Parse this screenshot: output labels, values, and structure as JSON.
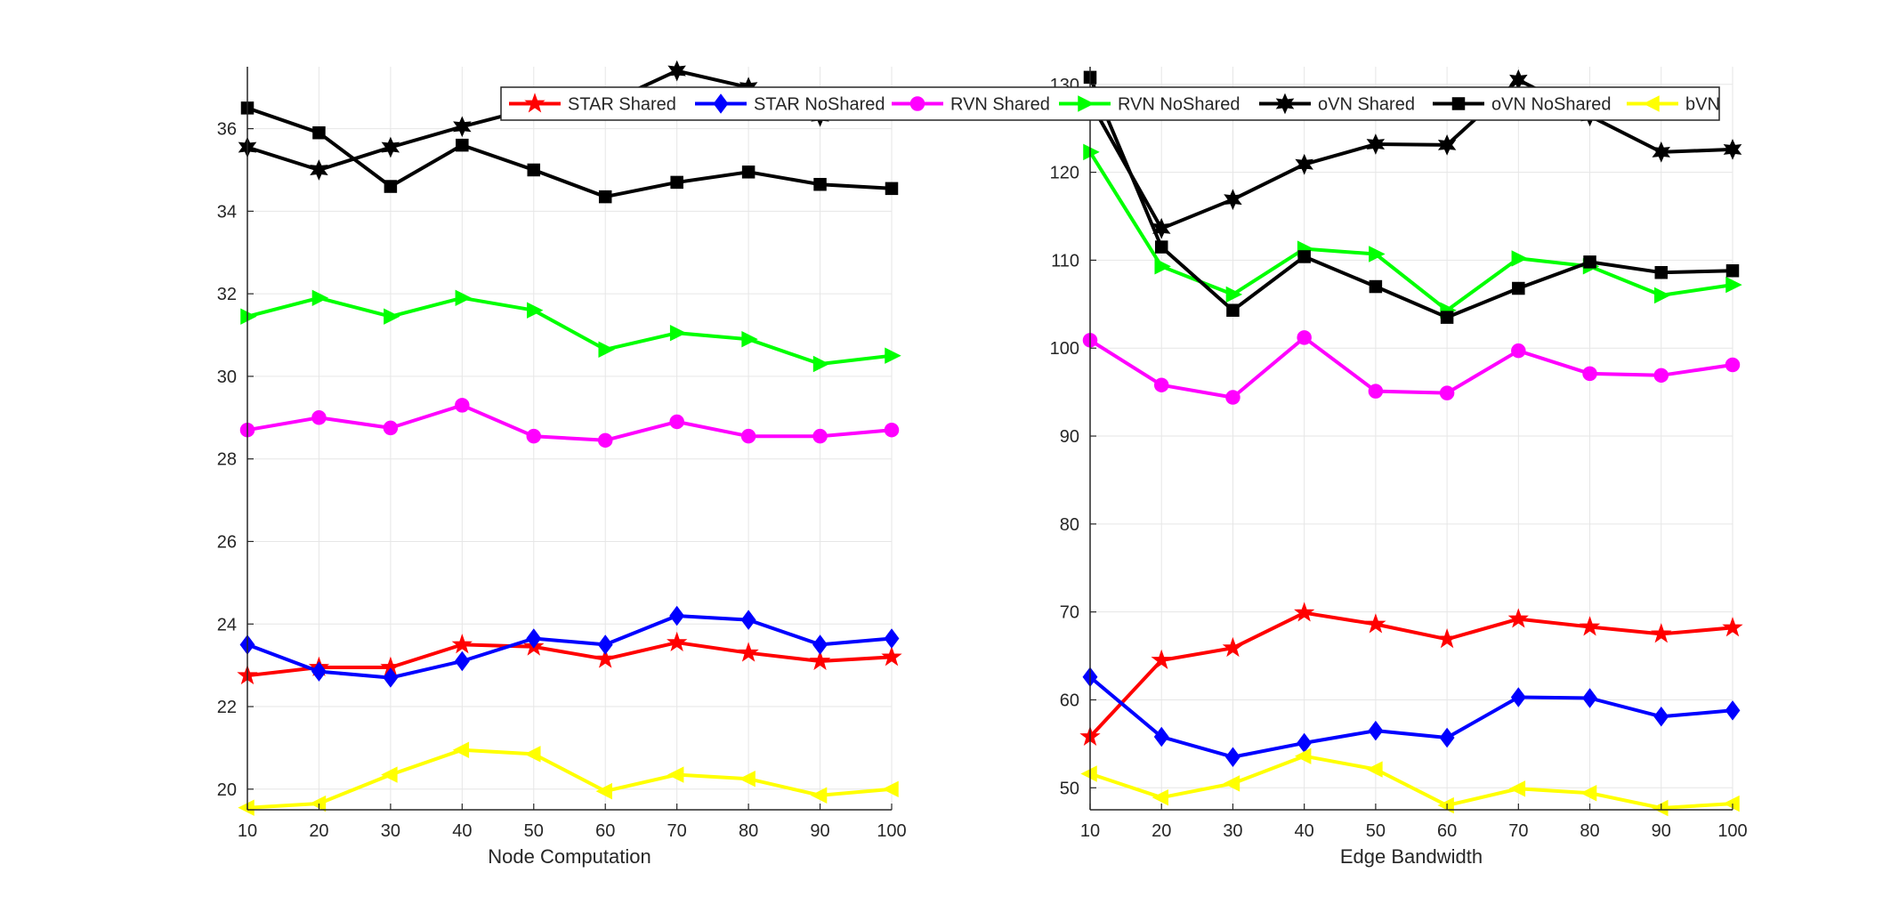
{
  "chart_data": [
    {
      "type": "line",
      "xlabel": "Node Computation",
      "ylabel": "",
      "x": [
        10,
        20,
        30,
        40,
        50,
        60,
        70,
        80,
        90,
        100
      ],
      "xlim": [
        10,
        100
      ],
      "ylim": [
        19.5,
        37.5
      ],
      "xticks": [
        10,
        20,
        30,
        40,
        50,
        60,
        70,
        80,
        90,
        100
      ],
      "yticks": [
        20,
        22,
        24,
        26,
        28,
        30,
        32,
        34,
        36
      ],
      "grid": true,
      "series": [
        {
          "name": "STAR Shared",
          "color": "#ff0000",
          "marker": "star",
          "values": [
            22.75,
            22.95,
            22.95,
            23.5,
            23.45,
            23.15,
            23.55,
            23.3,
            23.1,
            23.2
          ]
        },
        {
          "name": "STAR NoShared",
          "color": "#0000ff",
          "marker": "diamond",
          "values": [
            23.5,
            22.85,
            22.7,
            23.1,
            23.65,
            23.5,
            24.2,
            24.1,
            23.5,
            23.65
          ]
        },
        {
          "name": "RVN Shared",
          "color": "#ff00ff",
          "marker": "circle",
          "values": [
            28.7,
            29.0,
            28.75,
            29.3,
            28.55,
            28.45,
            28.9,
            28.55,
            28.55,
            28.7
          ]
        },
        {
          "name": "RVN NoShared",
          "color": "#00ff00",
          "marker": "triangle-right",
          "values": [
            31.45,
            31.9,
            31.45,
            31.9,
            31.6,
            30.65,
            31.05,
            30.9,
            30.3,
            30.5
          ]
        },
        {
          "name": "oVN Shared",
          "color": "#000000",
          "marker": "hexagram",
          "values": [
            35.55,
            35.0,
            35.55,
            36.05,
            36.5,
            36.6,
            37.4,
            37.0,
            36.3,
            36.55
          ]
        },
        {
          "name": "oVN NoShared",
          "color": "#000000",
          "marker": "square",
          "values": [
            36.5,
            35.9,
            34.6,
            35.6,
            35.0,
            34.35,
            34.7,
            34.95,
            34.65,
            34.55
          ]
        },
        {
          "name": "bVN",
          "color": "#ffff00",
          "marker": "triangle-left",
          "values": [
            19.55,
            19.65,
            20.35,
            20.95,
            20.85,
            19.95,
            20.35,
            20.25,
            19.85,
            20.0
          ]
        }
      ]
    },
    {
      "type": "line",
      "xlabel": "Edge Bandwidth",
      "ylabel": "",
      "x": [
        10,
        20,
        30,
        40,
        50,
        60,
        70,
        80,
        90,
        100
      ],
      "xlim": [
        10,
        100
      ],
      "ylim": [
        47.5,
        132
      ],
      "xticks": [
        10,
        20,
        30,
        40,
        50,
        60,
        70,
        80,
        90,
        100
      ],
      "yticks": [
        50,
        60,
        70,
        80,
        90,
        100,
        110,
        120,
        130
      ],
      "grid": true,
      "series": [
        {
          "name": "STAR Shared",
          "color": "#ff0000",
          "marker": "star",
          "values": [
            55.8,
            64.5,
            65.9,
            69.9,
            68.6,
            66.9,
            69.2,
            68.3,
            67.5,
            68.2
          ]
        },
        {
          "name": "STAR NoShared",
          "color": "#0000ff",
          "marker": "diamond",
          "values": [
            62.6,
            55.8,
            53.5,
            55.1,
            56.5,
            55.7,
            60.3,
            60.2,
            58.1,
            58.8
          ]
        },
        {
          "name": "RVN Shared",
          "color": "#ff00ff",
          "marker": "circle",
          "values": [
            100.9,
            95.8,
            94.4,
            101.2,
            95.1,
            94.9,
            99.7,
            97.1,
            96.9,
            98.1
          ]
        },
        {
          "name": "RVN NoShared",
          "color": "#00ff00",
          "marker": "triangle-right",
          "values": [
            122.3,
            109.3,
            106.1,
            111.3,
            110.7,
            104.3,
            110.2,
            109.3,
            106.0,
            107.2
          ]
        },
        {
          "name": "oVN Shared",
          "color": "#000000",
          "marker": "hexagram",
          "values": [
            128.0,
            113.6,
            116.9,
            120.9,
            123.2,
            123.1,
            130.5,
            126.4,
            122.3,
            122.6
          ]
        },
        {
          "name": "oVN NoShared",
          "color": "#000000",
          "marker": "square",
          "values": [
            130.8,
            111.5,
            104.3,
            110.4,
            107.0,
            103.5,
            106.8,
            109.8,
            108.6,
            108.8
          ]
        },
        {
          "name": "bVN",
          "color": "#ffff00",
          "marker": "triangle-left",
          "values": [
            51.6,
            48.9,
            50.5,
            53.6,
            52.1,
            48.0,
            49.9,
            49.4,
            47.7,
            48.2
          ]
        }
      ]
    }
  ],
  "legend": {
    "placement": "top-center",
    "entries": [
      "STAR Shared",
      "STAR NoShared",
      "RVN Shared",
      "RVN NoShared",
      "oVN Shared",
      "oVN NoShared",
      "bVN"
    ]
  }
}
